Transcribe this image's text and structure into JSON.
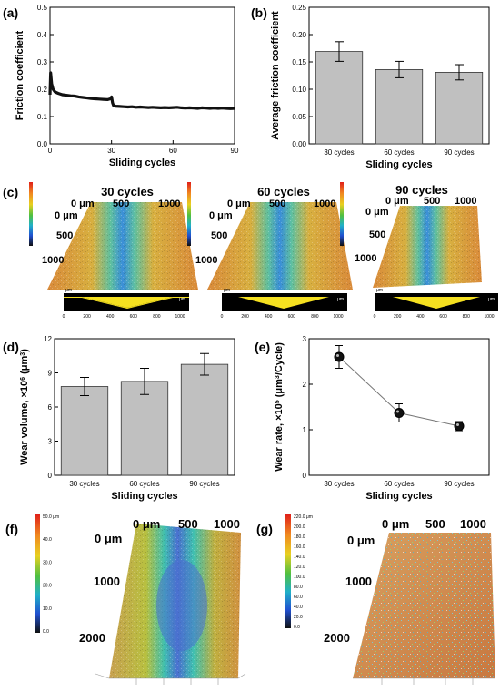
{
  "panels": {
    "a": "(a)",
    "b": "(b)",
    "c": "(c)",
    "d": "(d)",
    "e": "(e)",
    "f": "(f)",
    "g": "(g)"
  },
  "chart_data": [
    {
      "id": "a",
      "type": "line",
      "xlabel": "Sliding cycles",
      "ylabel": "Friction coefficient",
      "xlim": [
        0,
        90
      ],
      "ylim": [
        0,
        0.5
      ],
      "xticks": [
        "0",
        "30",
        "60",
        "90"
      ],
      "yticks": [
        "0.0",
        "0.1",
        "0.2",
        "0.3",
        "0.4",
        "0.5"
      ],
      "x": [
        0,
        0.3,
        0.8,
        1.5,
        2.5,
        4,
        6,
        8,
        10,
        12,
        14,
        16,
        18,
        20,
        22,
        24,
        26,
        28,
        29.5,
        30,
        30.5,
        31,
        32,
        34,
        36,
        38,
        40,
        42,
        44,
        46,
        48,
        50,
        52,
        54,
        56,
        58,
        60,
        62,
        64,
        66,
        68,
        70,
        72,
        74,
        76,
        78,
        80,
        82,
        84,
        86,
        88,
        90
      ],
      "y": [
        0.18,
        0.26,
        0.22,
        0.2,
        0.19,
        0.185,
        0.18,
        0.178,
        0.176,
        0.175,
        0.172,
        0.17,
        0.168,
        0.166,
        0.165,
        0.164,
        0.163,
        0.162,
        0.165,
        0.172,
        0.15,
        0.14,
        0.138,
        0.137,
        0.136,
        0.135,
        0.136,
        0.134,
        0.135,
        0.134,
        0.133,
        0.134,
        0.133,
        0.132,
        0.133,
        0.132,
        0.133,
        0.134,
        0.132,
        0.131,
        0.132,
        0.131,
        0.13,
        0.132,
        0.131,
        0.13,
        0.131,
        0.13,
        0.131,
        0.13,
        0.129,
        0.13
      ]
    },
    {
      "id": "b",
      "type": "bar",
      "categories": [
        "30 cycles",
        "60 cycles",
        "90 cycles"
      ],
      "values": [
        0.169,
        0.136,
        0.131
      ],
      "errors": [
        0.018,
        0.015,
        0.014
      ],
      "xlabel": "Sliding cycles",
      "ylabel": "Average friction coefficient",
      "ylim": [
        0,
        0.25
      ],
      "yticks": [
        "0.00",
        "0.05",
        "0.10",
        "0.15",
        "0.20",
        "0.25"
      ]
    },
    {
      "id": "d",
      "type": "bar",
      "categories": [
        "30 cycles",
        "60 cycles",
        "90 cycles"
      ],
      "values": [
        7.8,
        8.25,
        9.75
      ],
      "errors": [
        0.8,
        1.15,
        0.95
      ],
      "xlabel": "Sliding cycles",
      "ylabel": "Wear volume, ×10",
      "ylabel_sup": "6",
      "ylabel_unit": " (μm",
      "ylabel_unit_sup": "3",
      "ylabel_end": ")",
      "ylim": [
        0,
        12
      ],
      "yticks": [
        "0",
        "3",
        "6",
        "9",
        "12"
      ]
    },
    {
      "id": "e",
      "type": "scatter",
      "categories": [
        "30 cycles",
        "60 cycles",
        "90 cycles"
      ],
      "values": [
        2.6,
        1.37,
        1.08
      ],
      "errors": [
        0.25,
        0.2,
        0.1
      ],
      "xlabel": "Sliding cycles",
      "ylabel": "Wear rate, ×10",
      "ylabel_sup": "5",
      "ylabel_unit": " (μm",
      "ylabel_unit_sup": "3",
      "ylabel_end": "/Cycle)",
      "ylim": [
        0,
        3
      ],
      "yticks": [
        "0",
        "1",
        "2",
        "3"
      ]
    }
  ],
  "maps_c": [
    {
      "title": "30 cycles",
      "top": [
        "0 μm",
        "500",
        "1000"
      ],
      "left": [
        "0 μm",
        "500",
        "1000"
      ]
    },
    {
      "title": "60 cycles",
      "top": [
        "0 μm",
        "500",
        "1000"
      ],
      "left": [
        "0 μm",
        "500",
        "1000"
      ]
    },
    {
      "title": "90 cycles",
      "top": [
        "0 μm",
        "500",
        "1000"
      ],
      "left": [
        "0 μm",
        "500",
        "1000"
      ]
    }
  ],
  "profile": {
    "xticks": [
      "0",
      "200",
      "400",
      "600",
      "800",
      "1000"
    ],
    "unit": "μm"
  },
  "map_f": {
    "top": [
      "0 μm",
      "500",
      "1000"
    ],
    "left": [
      "0 μm",
      "1000",
      "2000"
    ],
    "scale": [
      "50.0 μm",
      "40.0",
      "30.0",
      "20.0",
      "10.0",
      "0.0"
    ]
  },
  "map_g": {
    "top": [
      "0 μm",
      "500",
      "1000"
    ],
    "left": [
      "0 μm",
      "1000",
      "2000"
    ],
    "scale": [
      "220.0 μm",
      "200.0",
      "180.0",
      "160.0",
      "140.0",
      "120.0",
      "100.0",
      "80.0",
      "60.0",
      "40.0",
      "20.0",
      "0.0"
    ]
  },
  "colors": {
    "bar": "#c0c0c0",
    "line": "#111111",
    "surface_warm": "#d9a050",
    "surface_cool": "#4a8fd6"
  }
}
